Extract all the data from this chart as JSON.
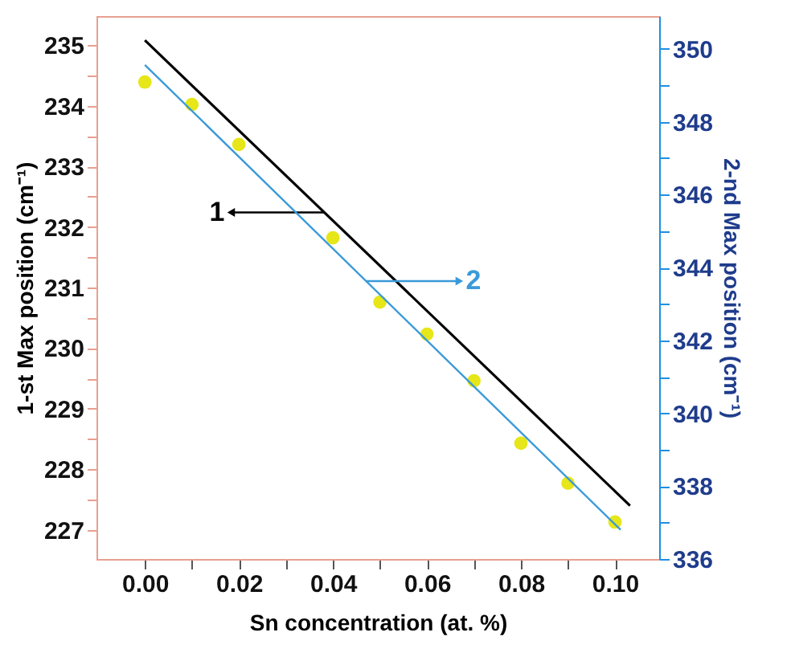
{
  "chart_data": {
    "type": "scatter",
    "xlabel": "Sn concentration (at. %)",
    "ylabel": "1-st Max position (cm⁻¹)",
    "y2label": "2-nd Max position (cm⁻¹)",
    "xlim": [
      -0.0103,
      0.1094
    ],
    "xticks": [
      {
        "value": 0,
        "label": "0.00"
      },
      {
        "value": 0.01,
        "label": null
      },
      {
        "value": 0.02,
        "label": "0.02"
      },
      {
        "value": 0.03,
        "label": null
      },
      {
        "value": 0.04,
        "label": "0.04"
      },
      {
        "value": 0.05,
        "label": null
      },
      {
        "value": 0.06,
        "label": "0.06"
      },
      {
        "value": 0.07,
        "label": null
      },
      {
        "value": 0.08,
        "label": "0.08"
      },
      {
        "value": 0.09,
        "label": null
      },
      {
        "value": 0.1,
        "label": "0.10"
      }
    ],
    "ylim": [
      226.52,
      235.48
    ],
    "yticks": [
      227,
      {
        "value": 227.5,
        "label": null
      },
      228,
      {
        "value": 228.5,
        "label": null
      },
      229,
      {
        "value": 229.5,
        "label": null
      },
      230,
      {
        "value": 230.5,
        "label": null
      },
      231,
      {
        "value": 231.5,
        "label": null
      },
      232,
      {
        "value": 232.5,
        "label": null
      },
      233,
      {
        "value": 233.5,
        "label": null
      },
      234,
      {
        "value": 234.5,
        "label": null
      },
      235
    ],
    "y2lim": [
      336,
      350.9
    ],
    "y2ticks": [
      336,
      {
        "value": 337,
        "label": null
      },
      338,
      {
        "value": 339,
        "label": null
      },
      340,
      {
        "value": 341,
        "label": null
      },
      342,
      {
        "value": 343,
        "label": null
      },
      344,
      {
        "value": 345,
        "label": null
      },
      346,
      {
        "value": 347,
        "label": null
      },
      348,
      {
        "value": 349,
        "label": null
      },
      350
    ],
    "series": [
      {
        "marker": "circle",
        "color": "#e6e619",
        "x": [
          0,
          0.01,
          0.02,
          0.04,
          0.05,
          0.06,
          0.07,
          0.08,
          0.09,
          0.1
        ],
        "values": [
          234.39,
          234.02,
          233.36,
          231.82,
          230.76,
          230.23,
          229.46,
          228.43,
          227.77,
          227.13
        ]
      },
      {
        "type": "line",
        "name": "1",
        "color": "#000000",
        "x": [
          0,
          0.1032
        ],
        "values": [
          235.08,
          227.4
        ]
      },
      {
        "type": "line",
        "name": "2",
        "axis": "y2",
        "color": "#3a9ad9",
        "x": [
          0,
          0.1012
        ],
        "values": [
          349.56,
          336.8
        ]
      }
    ]
  }
}
